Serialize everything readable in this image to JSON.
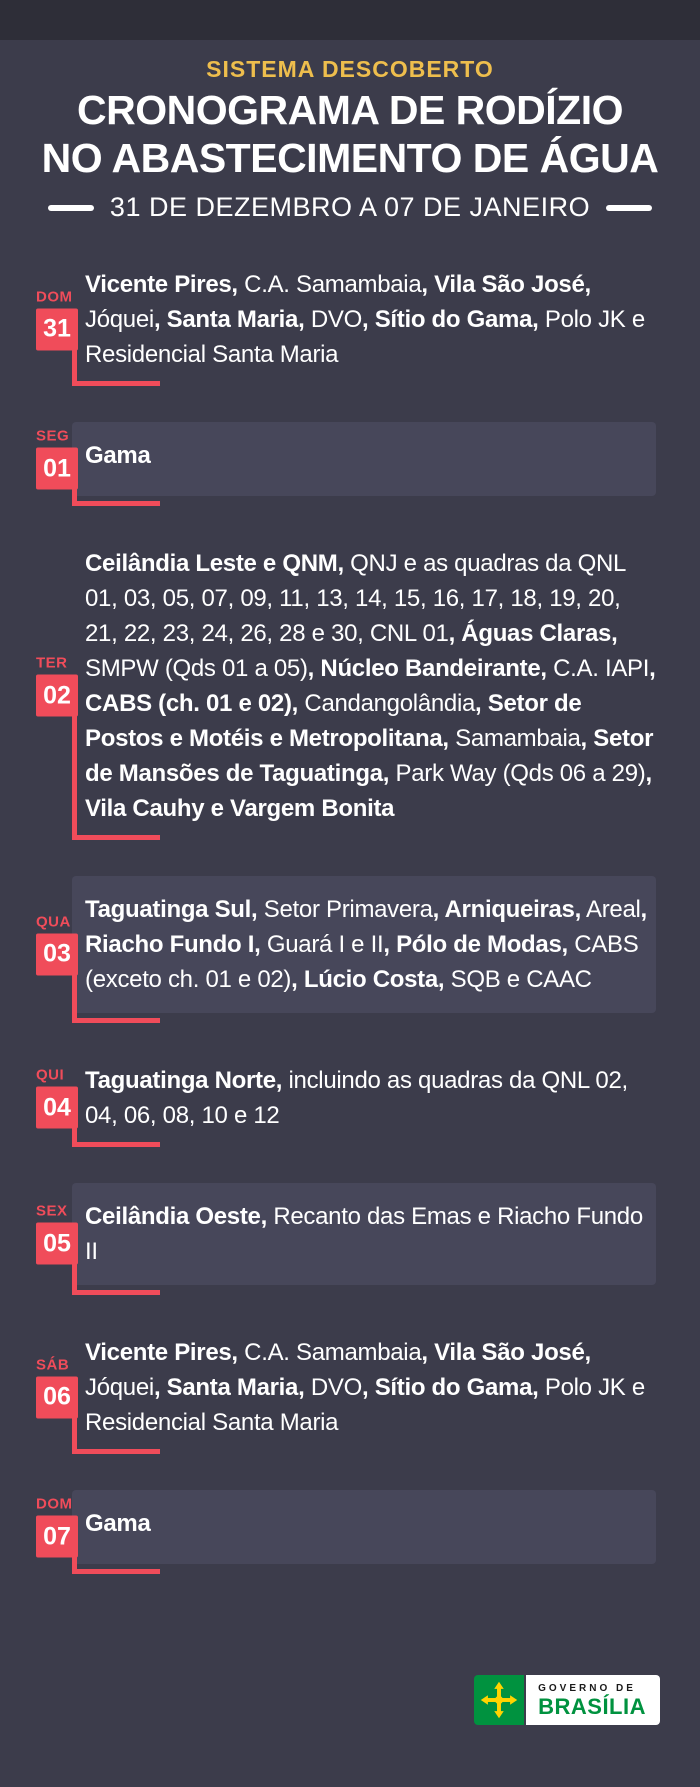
{
  "header": {
    "kicker": "SISTEMA DESCOBERTO",
    "title_line1": "CRONOGRAMA DE RODÍZIO",
    "title_line2": "NO ABASTECIMENTO DE ÁGUA",
    "date_range": "31 DE DEZEMBRO A 07 DE JANEIRO"
  },
  "days": [
    {
      "label": "DOM",
      "num": "31",
      "panel": false,
      "segments": [
        {
          "t": "Vicente Pires,",
          "b": true
        },
        {
          "t": " C.A. Samambaia",
          "b": false
        },
        {
          "t": ", Vila São José,",
          "b": true
        },
        {
          "t": " Jóquei",
          "b": false
        },
        {
          "t": ", Santa Maria,",
          "b": true
        },
        {
          "t": " DVO",
          "b": false
        },
        {
          "t": ", Sítio do Gama,",
          "b": true
        },
        {
          "t": " Polo JK e Residencial Santa Maria",
          "b": false
        }
      ]
    },
    {
      "label": "SEG",
      "num": "01",
      "panel": true,
      "segments": [
        {
          "t": "Gama",
          "b": true
        }
      ]
    },
    {
      "label": "TER",
      "num": "02",
      "panel": false,
      "segments": [
        {
          "t": "Ceilândia Leste e QNM,",
          "b": true
        },
        {
          "t": " QNJ e as quadras da QNL 01, 03, 05, 07, 09, 11, 13, 14, 15, 16, 17, 18, 19, 20, 21, 22, 23, 24, 26, 28 e 30, CNL 01",
          "b": false
        },
        {
          "t": ", Águas Claras,",
          "b": true
        },
        {
          "t": " SMPW (Qds 01 a 05)",
          "b": false
        },
        {
          "t": ", Núcleo Bandeirante,",
          "b": true
        },
        {
          "t": " C.A. IAPI",
          "b": false
        },
        {
          "t": ", CABS (ch. 01 e 02),",
          "b": true
        },
        {
          "t": " Candangolândia",
          "b": false
        },
        {
          "t": ", Setor de Postos e Motéis e Metropolitana,",
          "b": true
        },
        {
          "t": " Samambaia",
          "b": false
        },
        {
          "t": ", Setor de Mansões de Taguatinga,",
          "b": true
        },
        {
          "t": " Park Way (Qds 06 a 29)",
          "b": false
        },
        {
          "t": ", Vila Cauhy e Vargem Bonita",
          "b": true
        }
      ]
    },
    {
      "label": "QUA",
      "num": "03",
      "panel": true,
      "segments": [
        {
          "t": "Taguatinga Sul,",
          "b": true
        },
        {
          "t": " Setor Primavera",
          "b": false
        },
        {
          "t": ", Arniqueiras,",
          "b": true
        },
        {
          "t": " Areal",
          "b": false
        },
        {
          "t": ", Riacho Fundo I,",
          "b": true
        },
        {
          "t": " Guará I e II",
          "b": false
        },
        {
          "t": ", Pólo de Modas,",
          "b": true
        },
        {
          "t": " CABS (exceto ch. 01 e 02)",
          "b": false
        },
        {
          "t": ", Lúcio Costa,",
          "b": true
        },
        {
          "t": " SQB e CAAC",
          "b": false
        }
      ]
    },
    {
      "label": "QUI",
      "num": "04",
      "panel": false,
      "segments": [
        {
          "t": "Taguatinga Norte,",
          "b": true
        },
        {
          "t": " incluindo as quadras da QNL 02, 04, 06, 08, 10 e 12",
          "b": false
        }
      ]
    },
    {
      "label": "SEX",
      "num": "05",
      "panel": true,
      "segments": [
        {
          "t": "Ceilândia Oeste,",
          "b": true
        },
        {
          "t": " Recanto das Emas e Riacho Fundo II",
          "b": false
        }
      ]
    },
    {
      "label": "SÁB",
      "num": "06",
      "panel": false,
      "segments": [
        {
          "t": "Vicente Pires,",
          "b": true
        },
        {
          "t": " C.A. Samambaia",
          "b": false
        },
        {
          "t": ", Vila São José,",
          "b": true
        },
        {
          "t": " Jóquei",
          "b": false
        },
        {
          "t": ", Santa Maria,",
          "b": true
        },
        {
          "t": " DVO",
          "b": false
        },
        {
          "t": ", Sítio do Gama,",
          "b": true
        },
        {
          "t": " Polo JK e Residencial Santa Maria",
          "b": false
        }
      ]
    },
    {
      "label": "DOM",
      "num": "07",
      "panel": true,
      "segments": [
        {
          "t": "Gama",
          "b": true
        }
      ]
    }
  ],
  "footer": {
    "logo_top": "GOVERNO DE",
    "logo_bottom": "BRASÍLIA"
  },
  "colors": {
    "background": "#3c3c4b",
    "panel": "#47475a",
    "accent_red": "#f04c5a",
    "gold": "#eebe4d",
    "brand_green": "#00923f",
    "brand_yellow": "#ffd400"
  }
}
